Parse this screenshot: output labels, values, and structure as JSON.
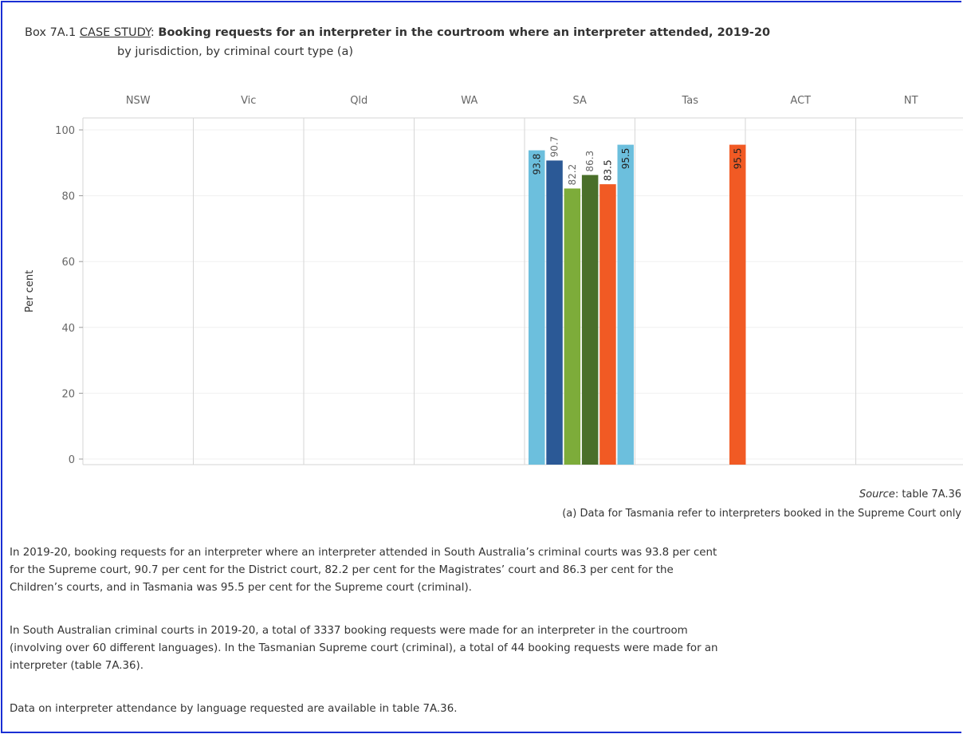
{
  "title": {
    "prefix": "Box 7A.1 ",
    "case_study": "CASE STUDY",
    "sep": ": ",
    "main": "Booking requests for an interpreter in the courtroom where an interpreter attended, 2019-20",
    "subtitle": "by jurisdiction, by criminal court type (a)"
  },
  "chart_data": {
    "type": "bar",
    "jurisdictions": [
      "NSW",
      "Vic",
      "Qld",
      "WA",
      "SA",
      "Tas",
      "ACT",
      "NT"
    ],
    "ylabel": "Per cent",
    "ylim": [
      0,
      100
    ],
    "yticks": [
      0,
      20,
      40,
      60,
      80,
      100
    ],
    "grid": true,
    "series": [
      {
        "jurisdiction": "SA",
        "value": 93.8,
        "color": "#6cbfdd"
      },
      {
        "jurisdiction": "SA",
        "value": 90.7,
        "color": "#2b5996"
      },
      {
        "jurisdiction": "SA",
        "value": 82.2,
        "color": "#7dac3a"
      },
      {
        "jurisdiction": "SA",
        "value": 86.3,
        "color": "#4a6f2a"
      },
      {
        "jurisdiction": "SA",
        "value": 83.5,
        "color": "#f15a24"
      },
      {
        "jurisdiction": "SA",
        "value": 95.5,
        "color": "#6cbfdd"
      },
      {
        "jurisdiction": "Tas",
        "value": 95.5,
        "color": "#f15a24"
      }
    ],
    "bar_labels": [
      "93.8",
      "90.7",
      "82.2",
      "86.3",
      "83.5",
      "95.5",
      "95.5"
    ]
  },
  "source": {
    "label": "Source",
    "text": ": table 7A.36"
  },
  "note": "(a) Data for Tasmania refer to interpreters booked in the Supreme Court only",
  "paragraphs": [
    [
      "In 2019-20, booking requests for an interpreter where an interpreter attended in South Australia’s criminal courts was 93.8 per cent",
      "for the Supreme court, 90.7 per cent for the District court, 82.2 per cent for the  Magistrates’ court and 86.3 per cent for the",
      "Children’s courts, and in Tasmania was 95.5 per cent for the Supreme court (criminal)."
    ],
    [
      "In South Australian criminal courts in 2019-20, a total of 3337 booking requests were made for an interpreter in the courtroom",
      "(involving over 60 different languages). In the Tasmanian Supreme court (criminal), a total of 44 booking requests were made for an",
      "interpreter (table 7A.36)."
    ],
    [
      "Data on interpreter attendance by language requested are available in table 7A.36."
    ]
  ]
}
